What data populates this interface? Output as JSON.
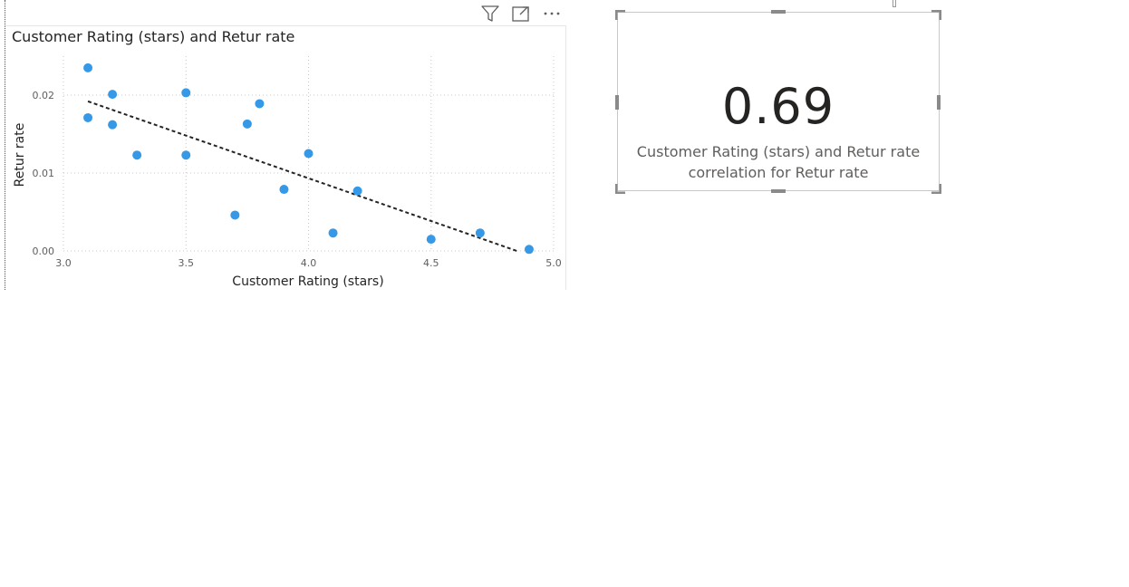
{
  "visual": {
    "header_icons": [
      "filter-icon",
      "focus-mode-icon",
      "more-options-icon"
    ]
  },
  "chart_data": {
    "type": "scatter",
    "title": "Customer Rating (stars) and Retur rate",
    "xlabel": "Customer Rating (stars)",
    "ylabel": "Retur rate",
    "xlim": [
      3.0,
      5.0
    ],
    "ylim": [
      0.0,
      0.025
    ],
    "x_ticks": [
      "3.0",
      "3.5",
      "4.0",
      "4.5",
      "5.0"
    ],
    "y_ticks": [
      "0.00",
      "0.01",
      "0.02"
    ],
    "y_tick_values": [
      0.0,
      0.01,
      0.02
    ],
    "grid": true,
    "point_color": "#3599e8",
    "trend_line_color": "#252423",
    "points": [
      {
        "x": 3.1,
        "y": 0.0235
      },
      {
        "x": 3.1,
        "y": 0.0171
      },
      {
        "x": 3.2,
        "y": 0.0201
      },
      {
        "x": 3.2,
        "y": 0.0162
      },
      {
        "x": 3.3,
        "y": 0.0123
      },
      {
        "x": 3.5,
        "y": 0.0203
      },
      {
        "x": 3.5,
        "y": 0.0123
      },
      {
        "x": 3.7,
        "y": 0.0046
      },
      {
        "x": 3.75,
        "y": 0.0163
      },
      {
        "x": 3.8,
        "y": 0.0189
      },
      {
        "x": 3.9,
        "y": 0.0079
      },
      {
        "x": 4.0,
        "y": 0.0125
      },
      {
        "x": 4.1,
        "y": 0.0023
      },
      {
        "x": 4.2,
        "y": 0.0077
      },
      {
        "x": 4.5,
        "y": 0.0015
      },
      {
        "x": 4.7,
        "y": 0.0023
      },
      {
        "x": 4.9,
        "y": 0.0002
      }
    ],
    "trend_line": {
      "x1": 3.1,
      "y1": 0.0192,
      "x2": 4.85,
      "y2": 0.0
    }
  },
  "card": {
    "value": "0.69",
    "label_line1": "Customer Rating (stars) and Retur rate",
    "label_line2": "correlation for Retur rate"
  }
}
